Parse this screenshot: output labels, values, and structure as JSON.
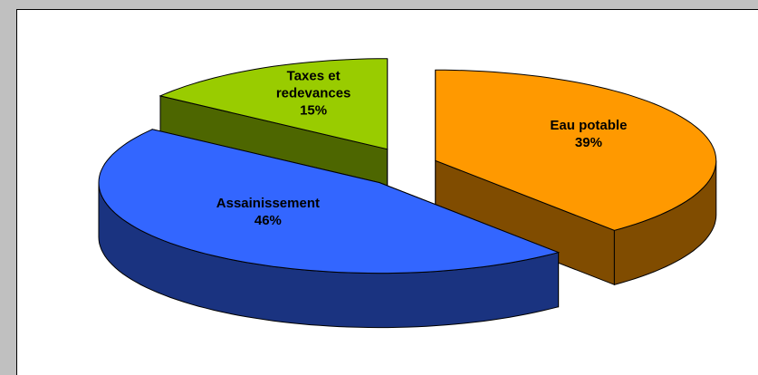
{
  "chart_data": {
    "type": "pie3d",
    "categories": [
      "Eau potable",
      "Assainissement",
      "Taxes et redevances"
    ],
    "values": [
      39,
      46,
      15
    ],
    "value_labels": [
      "39%",
      "46%",
      "15%"
    ],
    "colors": [
      "#ff9900",
      "#3366ff",
      "#99cc00"
    ],
    "side_colors": [
      "#804c00",
      "#1a3380",
      "#4d6600"
    ]
  }
}
